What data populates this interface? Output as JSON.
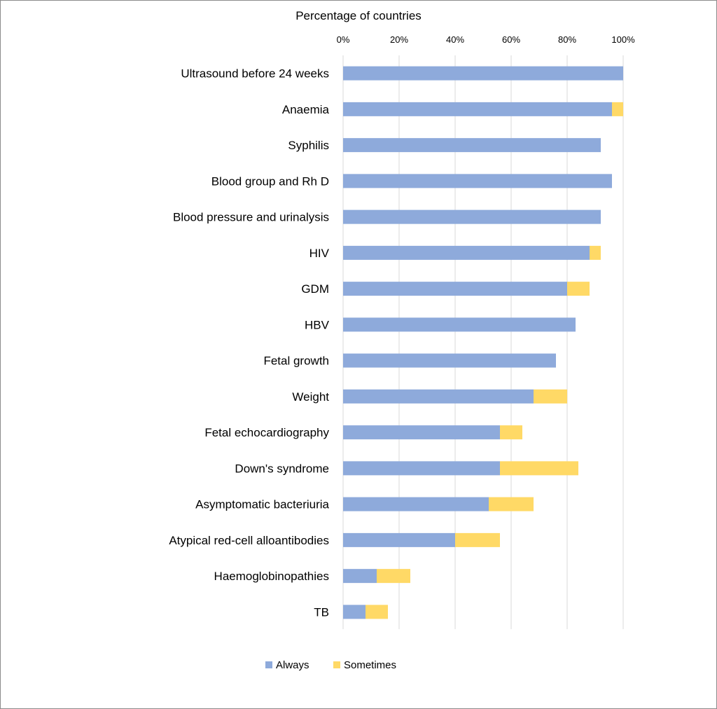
{
  "chart_data": {
    "type": "bar",
    "orientation": "horizontal",
    "stacked": true,
    "x_axis_position": "top",
    "xlabel": "Percentage of countries",
    "xlim": [
      0,
      100
    ],
    "x_ticks": [
      "0%",
      "20%",
      "40%",
      "60%",
      "80%",
      "100%"
    ],
    "grid": true,
    "legend_position": "bottom-center",
    "categories": [
      "Ultrasound before 24 weeks",
      "Anaemia",
      "Syphilis",
      "Blood group and Rh D",
      "Blood pressure  and urinalysis",
      "HIV",
      "GDM",
      "HBV",
      "Fetal growth",
      "Weight",
      "Fetal echocardiography",
      "Down's syndrome",
      "Asymptomatic bacteriuria",
      "Atypical red-cell alloantibodies",
      "Haemoglobinopathies",
      "TB"
    ],
    "series": [
      {
        "name": "Always",
        "color": "#8eaadb",
        "values": [
          100,
          96,
          92,
          96,
          92,
          88,
          80,
          83,
          76,
          68,
          56,
          56,
          52,
          40,
          12,
          8
        ]
      },
      {
        "name": "Sometimes",
        "color": "#ffd966",
        "values": [
          0,
          4,
          0,
          0,
          0,
          4,
          8,
          0,
          0,
          12,
          8,
          28,
          16,
          16,
          12,
          8
        ]
      }
    ]
  }
}
